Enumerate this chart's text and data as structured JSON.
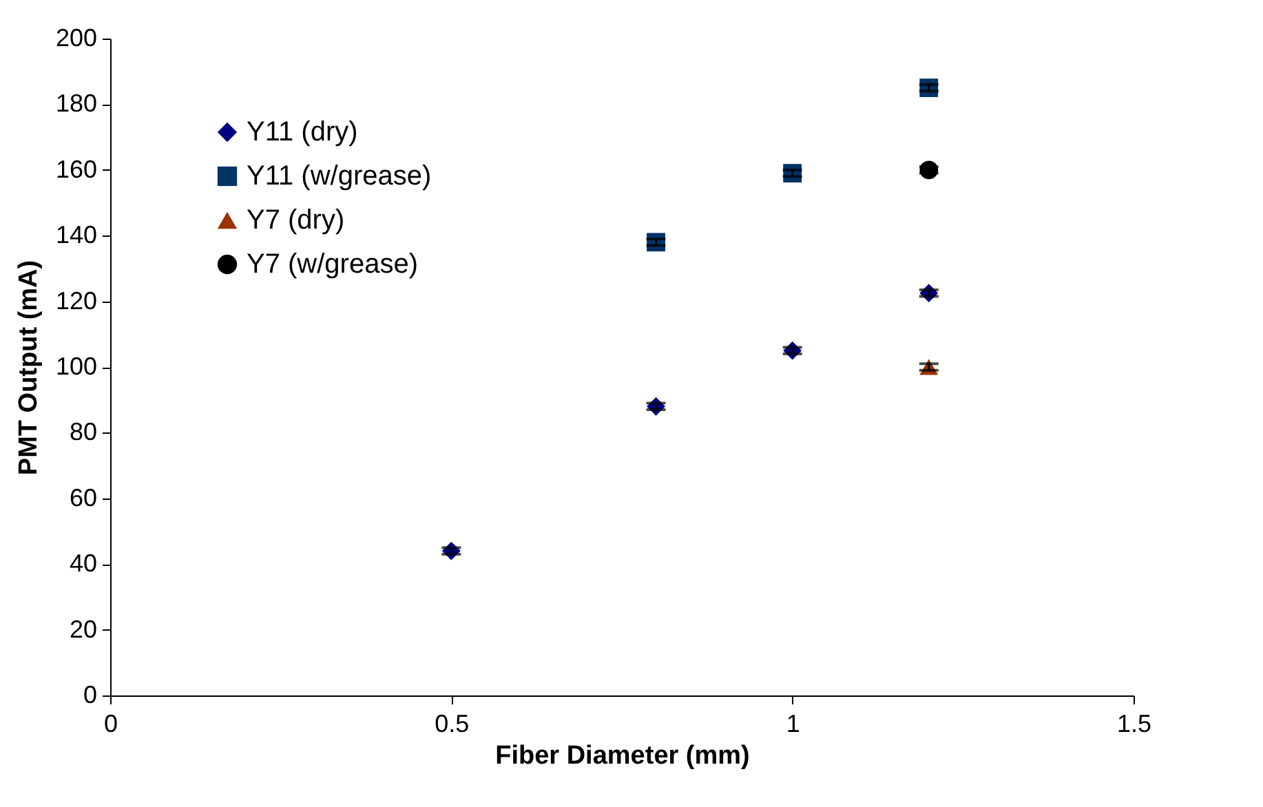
{
  "chart_data": {
    "type": "scatter",
    "xlabel": "Fiber Diameter (mm)",
    "ylabel": "PMT Output (mA)",
    "xlim": [
      0,
      1.5
    ],
    "xticks": [
      0,
      0.5,
      1,
      1.5
    ],
    "ylim": [
      0,
      200
    ],
    "yticks": [
      0,
      20,
      40,
      60,
      80,
      100,
      120,
      140,
      160,
      180,
      200
    ],
    "grid": false,
    "legend": "top left",
    "series": [
      {
        "name": "Y11 (dry)",
        "color": "#000080",
        "marker": "diamond",
        "x": [
          0.5,
          0.8,
          1.0,
          1.2
        ],
        "values": [
          44,
          88,
          105,
          122.5
        ],
        "errors": [
          1,
          1,
          1,
          1
        ]
      },
      {
        "name": "Y11 (w/grease)",
        "color": "#003366",
        "marker": "square",
        "x": [
          0.8,
          1.0,
          1.2
        ],
        "values": [
          138,
          159,
          185
        ],
        "errors": [
          1,
          1,
          1
        ]
      },
      {
        "name": "Y7 (dry)",
        "color": "#993300",
        "marker": "triangle",
        "x": [
          1.2
        ],
        "values": [
          100
        ],
        "errors": [
          1
        ]
      },
      {
        "name": "Y7 (w/grease)",
        "color": "#000000",
        "marker": "circle",
        "x": [
          1.2
        ],
        "values": [
          160
        ],
        "errors": [
          1
        ]
      }
    ]
  }
}
